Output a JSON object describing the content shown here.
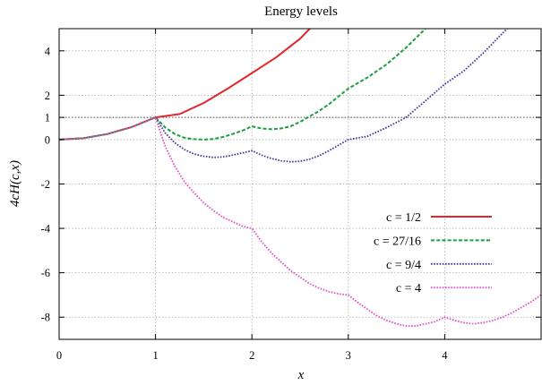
{
  "chart_data": {
    "type": "line",
    "title": "Energy levels",
    "xlabel": "x",
    "ylabel": "4cH(c,x)",
    "xlim": [
      0,
      5
    ],
    "ylim": [
      -9,
      5
    ],
    "xticks": [
      0,
      1,
      2,
      3,
      4
    ],
    "yticks": [
      4,
      2,
      1,
      0,
      -2,
      -4,
      -6,
      -8
    ],
    "grid": true,
    "reference_line_y": 1,
    "legend_position": "lower-right",
    "series": [
      {
        "name": "c = 1/2",
        "color": "#e3262d",
        "style": "solid",
        "x": [
          0,
          0.25,
          0.5,
          0.75,
          1,
          1.25,
          1.5,
          1.75,
          2,
          2.25,
          2.5,
          2.6
        ],
        "y": [
          0,
          0.06,
          0.25,
          0.56,
          1,
          1.15,
          1.65,
          2.3,
          3.0,
          3.7,
          4.55,
          5.0
        ]
      },
      {
        "name": "c = 27/16",
        "color": "#1c9e3c",
        "style": "dashed",
        "x": [
          0,
          0.25,
          0.5,
          0.75,
          1,
          1.1,
          1.2,
          1.3,
          1.4,
          1.5,
          1.6,
          1.7,
          1.8,
          1.9,
          2,
          2.1,
          2.2,
          2.3,
          2.4,
          2.5,
          2.6,
          2.7,
          2.8,
          2.9,
          3,
          3.2,
          3.4,
          3.6,
          3.8
        ],
        "y": [
          0,
          0.06,
          0.25,
          0.56,
          1,
          0.55,
          0.25,
          0.08,
          0.02,
          0,
          0.03,
          0.12,
          0.25,
          0.4,
          0.6,
          0.5,
          0.47,
          0.5,
          0.6,
          0.8,
          1.05,
          1.3,
          1.6,
          1.95,
          2.3,
          2.8,
          3.4,
          4.15,
          5.0
        ]
      },
      {
        "name": "c = 9/4",
        "color": "#3a3aa0",
        "style": "dotted",
        "x": [
          0,
          0.25,
          0.5,
          0.75,
          1,
          1.1,
          1.2,
          1.3,
          1.4,
          1.5,
          1.6,
          1.7,
          1.8,
          1.9,
          2,
          2.1,
          2.2,
          2.3,
          2.4,
          2.5,
          2.6,
          2.7,
          2.8,
          2.9,
          3,
          3.2,
          3.4,
          3.6,
          3.8,
          4,
          4.2,
          4.4,
          4.6,
          4.65
        ],
        "y": [
          0,
          0.06,
          0.25,
          0.56,
          1,
          0.3,
          -0.15,
          -0.45,
          -0.65,
          -0.75,
          -0.8,
          -0.78,
          -0.7,
          -0.6,
          -0.5,
          -0.7,
          -0.85,
          -0.95,
          -1.0,
          -0.98,
          -0.88,
          -0.72,
          -0.5,
          -0.25,
          0,
          0.15,
          0.55,
          1.0,
          1.75,
          2.5,
          3.1,
          3.9,
          4.8,
          5.0
        ]
      },
      {
        "name": "c = 4",
        "color": "#e24fc4",
        "style": "dotted",
        "x": [
          0,
          0.25,
          0.5,
          0.75,
          1,
          1.1,
          1.2,
          1.3,
          1.4,
          1.5,
          1.6,
          1.7,
          1.8,
          1.9,
          2,
          2.1,
          2.2,
          2.3,
          2.4,
          2.5,
          2.6,
          2.7,
          2.8,
          2.9,
          3,
          3.1,
          3.2,
          3.3,
          3.4,
          3.5,
          3.6,
          3.7,
          3.8,
          3.9,
          4,
          4.1,
          4.2,
          4.3,
          4.4,
          4.5,
          4.6,
          4.7,
          4.8,
          4.9,
          5
        ],
        "y": [
          0,
          0.06,
          0.25,
          0.56,
          1,
          -0.3,
          -1.2,
          -1.9,
          -2.4,
          -2.85,
          -3.2,
          -3.5,
          -3.7,
          -3.9,
          -4.0,
          -4.6,
          -5.1,
          -5.5,
          -5.9,
          -6.2,
          -6.5,
          -6.7,
          -6.85,
          -6.95,
          -7.0,
          -7.35,
          -7.65,
          -7.95,
          -8.15,
          -8.3,
          -8.4,
          -8.4,
          -8.3,
          -8.2,
          -8.0,
          -8.15,
          -8.25,
          -8.3,
          -8.25,
          -8.15,
          -8.0,
          -7.8,
          -7.55,
          -7.3,
          -7.0
        ]
      }
    ]
  }
}
